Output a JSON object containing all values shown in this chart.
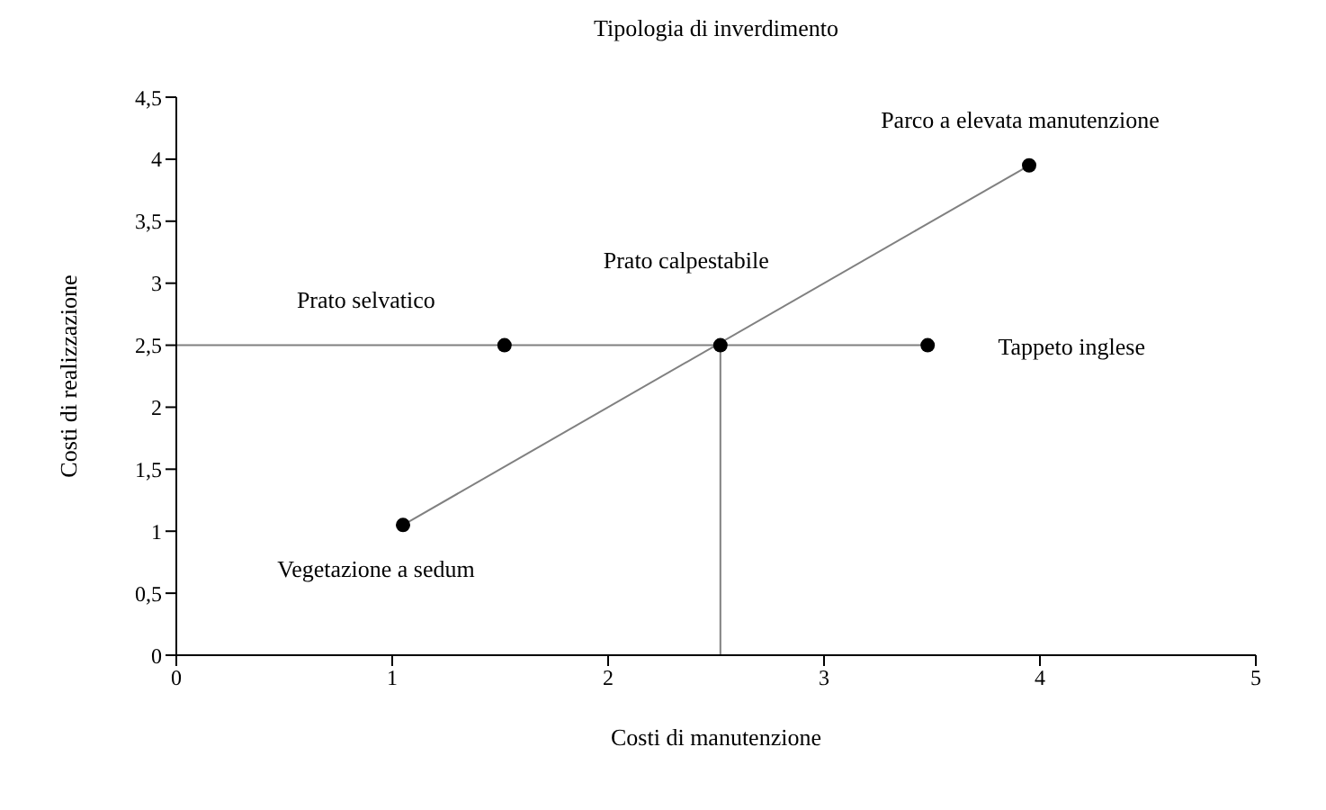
{
  "chart_data": {
    "type": "scatter",
    "title": "Tipologia di inverdimento",
    "xlabel": "Costi di manutenzione",
    "ylabel": "Costi di realizzazione",
    "xlim": [
      0,
      5
    ],
    "xticks": [
      0,
      1,
      2,
      3,
      4,
      5
    ],
    "ylim": [
      0,
      4.5
    ],
    "yticks": [
      0,
      {
        "value": 0.5,
        "label": "0,5"
      },
      1,
      {
        "value": 1.5,
        "label": "1,5"
      },
      2,
      {
        "value": 2.5,
        "label": "2,5"
      },
      3,
      {
        "value": 3.5,
        "label": "3,5"
      },
      4,
      {
        "value": 4.5,
        "label": "4,5"
      }
    ],
    "grid": false,
    "series": [
      {
        "type": "line",
        "color": "#808080",
        "x": [
          1.05,
          3.95
        ],
        "values": [
          1.05,
          3.95
        ]
      },
      {
        "type": "line",
        "color": "#808080",
        "x": [
          0,
          3.48
        ],
        "values": [
          2.5,
          2.5
        ]
      },
      {
        "type": "line",
        "color": "#808080",
        "x": [
          2.52,
          2.52
        ],
        "values": [
          0,
          2.5
        ]
      },
      {
        "color": "#000000",
        "marker": "circle",
        "x": [
          1.05,
          1.52,
          2.52,
          3.48,
          3.95
        ],
        "values": [
          1.05,
          2.5,
          2.5,
          2.5,
          3.95
        ]
      }
    ],
    "annotations": [
      "Vegetazione a sedum",
      "Prato selvatico",
      "Prato calpestabile",
      "Tappeto inglese",
      "Parco a elevata manutenzione"
    ]
  }
}
